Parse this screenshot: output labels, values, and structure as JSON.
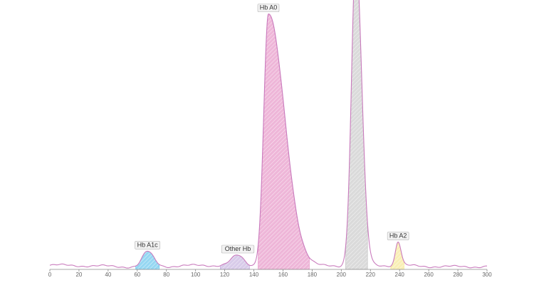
{
  "chart_data": {
    "type": "area",
    "title": "",
    "xlabel": "",
    "ylabel": "",
    "xlim": [
      0,
      300
    ],
    "ylim": [
      0,
      100
    ],
    "x_ticks": [
      0,
      20,
      40,
      60,
      80,
      100,
      120,
      140,
      160,
      180,
      200,
      220,
      240,
      260,
      280,
      300
    ],
    "grid": false,
    "line_color": "#c97bbd",
    "axis_color": "#8a8a8a",
    "baseline": 1.2,
    "peaks": [
      {
        "label": "Hb A1c",
        "center": 67,
        "height": 5.3,
        "width_left": 3.5,
        "width_right": 4.2,
        "from": 59,
        "to": 75,
        "color": "#3fb6e6"
      },
      {
        "label": "Other Hb",
        "center": 129,
        "height": 3.5,
        "width_left": 4.5,
        "width_right": 4,
        "from": 117,
        "to": 137,
        "color": "#b7a0d6"
      },
      {
        "label": "Hb A0",
        "center": 150,
        "height": 90,
        "width_left": 3.2,
        "width_right": 11,
        "from": 143,
        "to": 178,
        "color": "#e07ab8"
      },
      {
        "label": "",
        "center": 210,
        "height": 110,
        "width_left": 3,
        "width_right": 4,
        "from": 203,
        "to": 218,
        "color": "#bcbcbc"
      },
      {
        "label": "Hb A2",
        "center": 239,
        "height": 8.5,
        "width_left": 1.8,
        "width_right": 2,
        "from": 234,
        "to": 243,
        "color": "#f3e27a"
      }
    ]
  }
}
